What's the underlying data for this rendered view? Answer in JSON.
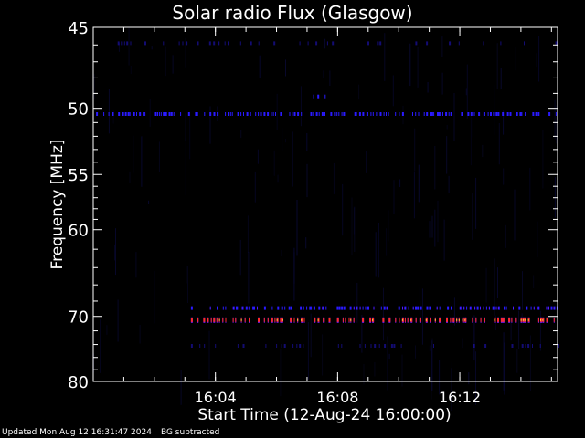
{
  "chart_data": {
    "type": "heatmap",
    "title": "Solar radio Flux (Glasgow)",
    "xlabel": "Start Time (12-Aug-24 16:00:00)",
    "ylabel": "Frequency [MHz]",
    "x_axis": {
      "unit": "minutes after 16:00:00",
      "range": [
        0.0,
        15.2
      ],
      "ticks": [
        {
          "value": 4,
          "label": "16:04"
        },
        {
          "value": 8,
          "label": "16:08"
        },
        {
          "value": 12,
          "label": "16:12"
        }
      ],
      "minor_step": 1
    },
    "y_axis": {
      "unit": "MHz",
      "scale": "reciprocal",
      "range": [
        45,
        80
      ],
      "inverted": true,
      "ticks": [
        {
          "value": 45,
          "label": "45"
        },
        {
          "value": 50,
          "label": "50"
        },
        {
          "value": 55,
          "label": "55"
        },
        {
          "value": 60,
          "label": "60"
        },
        {
          "value": 70,
          "label": "70"
        },
        {
          "value": 80,
          "label": "80"
        }
      ],
      "minor_ticks": [
        46,
        47,
        48,
        49,
        51,
        52,
        53,
        54,
        56,
        57,
        58,
        59,
        62,
        64,
        66,
        68,
        72,
        74,
        76,
        78
      ]
    },
    "colors": {
      "background": "#000000",
      "axes": "#ffffff",
      "weak": "#2a1aff",
      "medium": "#7a1aff",
      "strong": "#ff2a2a",
      "hot": "#ffd040"
    },
    "emission_bands": [
      {
        "freq_mhz": 50.4,
        "t_start": 0.0,
        "t_end": 15.2,
        "intensity": "weak",
        "pattern": "bursty"
      },
      {
        "freq_mhz": 49.2,
        "t_start": 7.2,
        "t_end": 7.7,
        "intensity": "weak",
        "pattern": "sparse"
      },
      {
        "freq_mhz": 68.9,
        "t_start": 3.2,
        "t_end": 15.2,
        "intensity": "medium",
        "pattern": "bursty"
      },
      {
        "freq_mhz": 70.5,
        "t_start": 3.2,
        "t_end": 15.2,
        "intensity": "strong",
        "pattern": "bursty"
      },
      {
        "freq_mhz": 74.2,
        "t_start": 3.2,
        "t_end": 15.2,
        "intensity": "weak",
        "pattern": "faint"
      },
      {
        "freq_mhz": 45.9,
        "t_start": 0.5,
        "t_end": 15.2,
        "intensity": "weak",
        "pattern": "faint"
      }
    ]
  },
  "footer": {
    "updated": "Updated Mon Aug 12 16:31:47 2024",
    "note": "BG subtracted"
  }
}
